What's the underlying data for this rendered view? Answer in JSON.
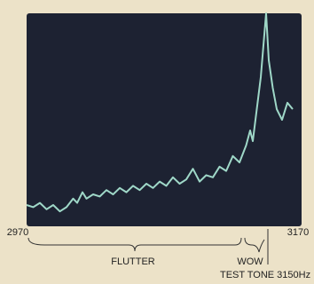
{
  "chart_data": {
    "type": "line",
    "x": [
      2970,
      2975,
      2980,
      2985,
      2990,
      2995,
      3000,
      3005,
      3008,
      3012,
      3015,
      3020,
      3025,
      3030,
      3035,
      3040,
      3045,
      3050,
      3055,
      3060,
      3065,
      3070,
      3075,
      3080,
      3085,
      3090,
      3095,
      3100,
      3105,
      3110,
      3115,
      3120,
      3125,
      3130,
      3135,
      3138,
      3140,
      3143,
      3146,
      3148,
      3150,
      3152,
      3155,
      3158,
      3162,
      3166,
      3170
    ],
    "series": [
      {
        "color": "#9fd8c8",
        "values": [
          10,
          9,
          11,
          8,
          10,
          7,
          9,
          13,
          11,
          16,
          13,
          15,
          14,
          17,
          15,
          18,
          16,
          19,
          17,
          20,
          18,
          21,
          19,
          23,
          20,
          22,
          27,
          21,
          24,
          23,
          28,
          26,
          33,
          30,
          38,
          45,
          40,
          55,
          70,
          85,
          100,
          78,
          65,
          55,
          50,
          58,
          55
        ]
      }
    ],
    "xlim": [
      2970,
      3170
    ],
    "xticks": [
      2970,
      3170
    ],
    "ylim": [
      0,
      100
    ],
    "background": "#1d2232",
    "annotations": [
      "FLUTTER",
      "WOW",
      "TEST TONE 3150Hz"
    ]
  }
}
